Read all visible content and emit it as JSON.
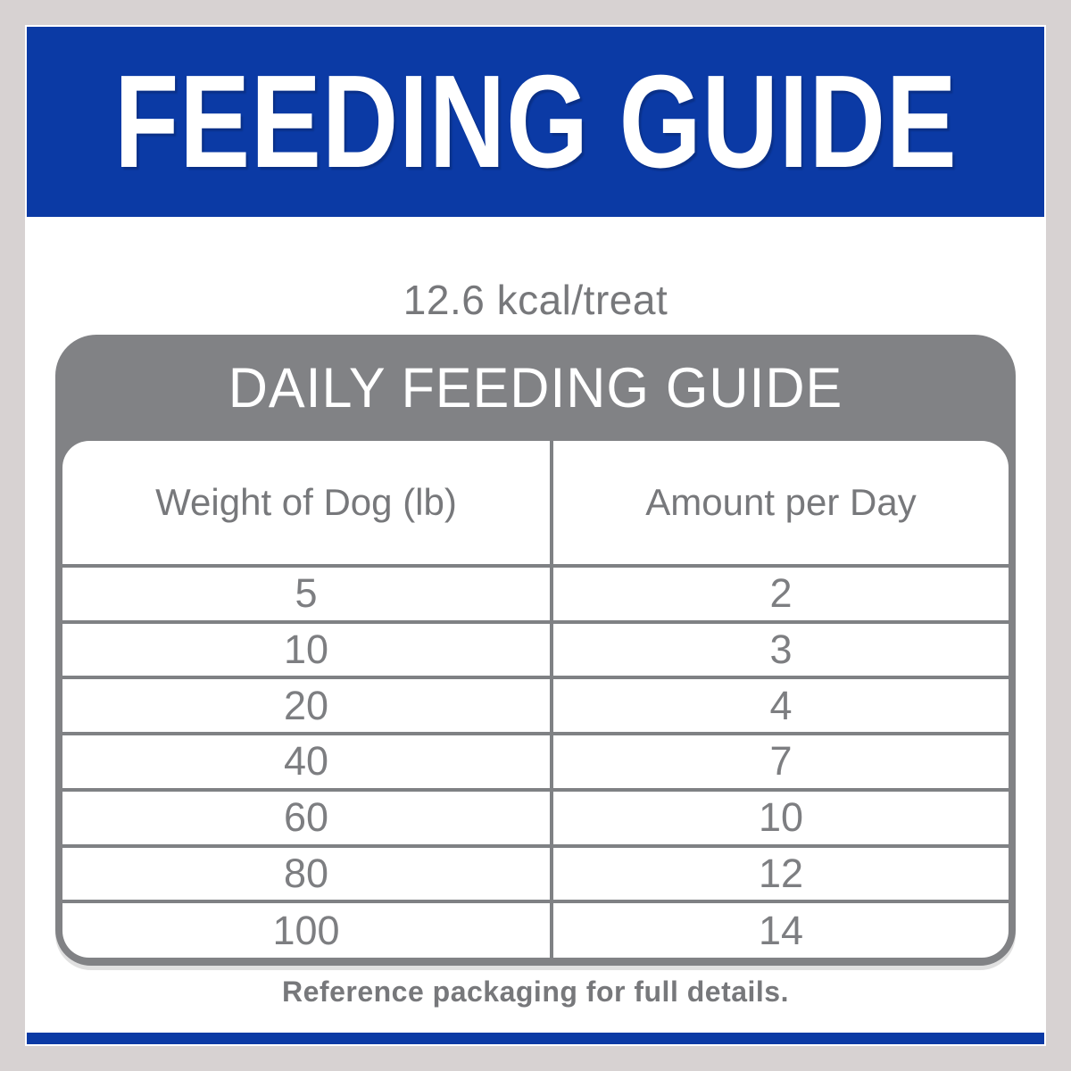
{
  "header": {
    "title": "FEEDING GUIDE",
    "kcal_line": "12.6 kcal/treat"
  },
  "panel": {
    "title": "DAILY FEEDING GUIDE",
    "footnote": "Reference packaging for full details."
  },
  "chart_data": {
    "type": "table",
    "title": "DAILY FEEDING GUIDE",
    "kcal_per_treat": 12.6,
    "columns": [
      "Weight of Dog (lb)",
      "Amount per Day"
    ],
    "rows": [
      [
        "5",
        "2"
      ],
      [
        "10",
        "3"
      ],
      [
        "20",
        "4"
      ],
      [
        "40",
        "7"
      ],
      [
        "60",
        "10"
      ],
      [
        "80",
        "12"
      ],
      [
        "100",
        "14"
      ]
    ]
  },
  "colors": {
    "brand_blue": "#0b3aa5",
    "panel_gray": "#818285",
    "line_gray": "#7f8184",
    "text_gray": "#77787b",
    "frame_gray": "#d7d2d2"
  }
}
